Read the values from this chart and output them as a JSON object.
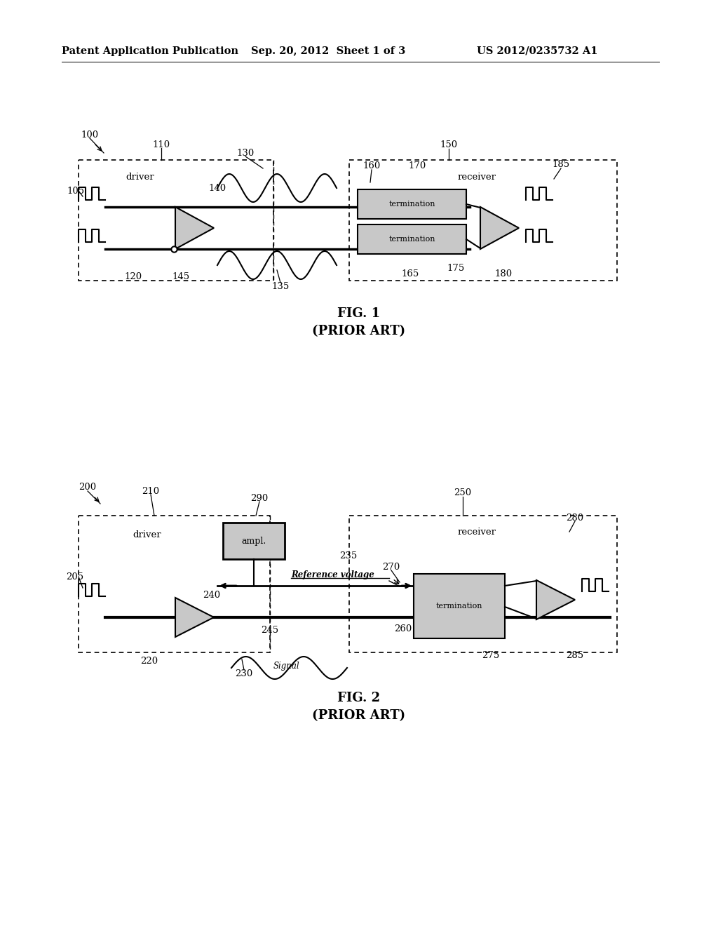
{
  "bg_color": "#ffffff",
  "header_left": "Patent Application Publication",
  "header_mid": "Sep. 20, 2012  Sheet 1 of 3",
  "header_right": "US 2012/0235732 A1",
  "fig1_caption": "FIG. 1",
  "fig1_sub": "(PRIOR ART)",
  "fig2_caption": "FIG. 2",
  "fig2_sub": "(PRIOR ART)",
  "light_gray": "#c8c8c8",
  "mid_gray": "#a0a0a0"
}
